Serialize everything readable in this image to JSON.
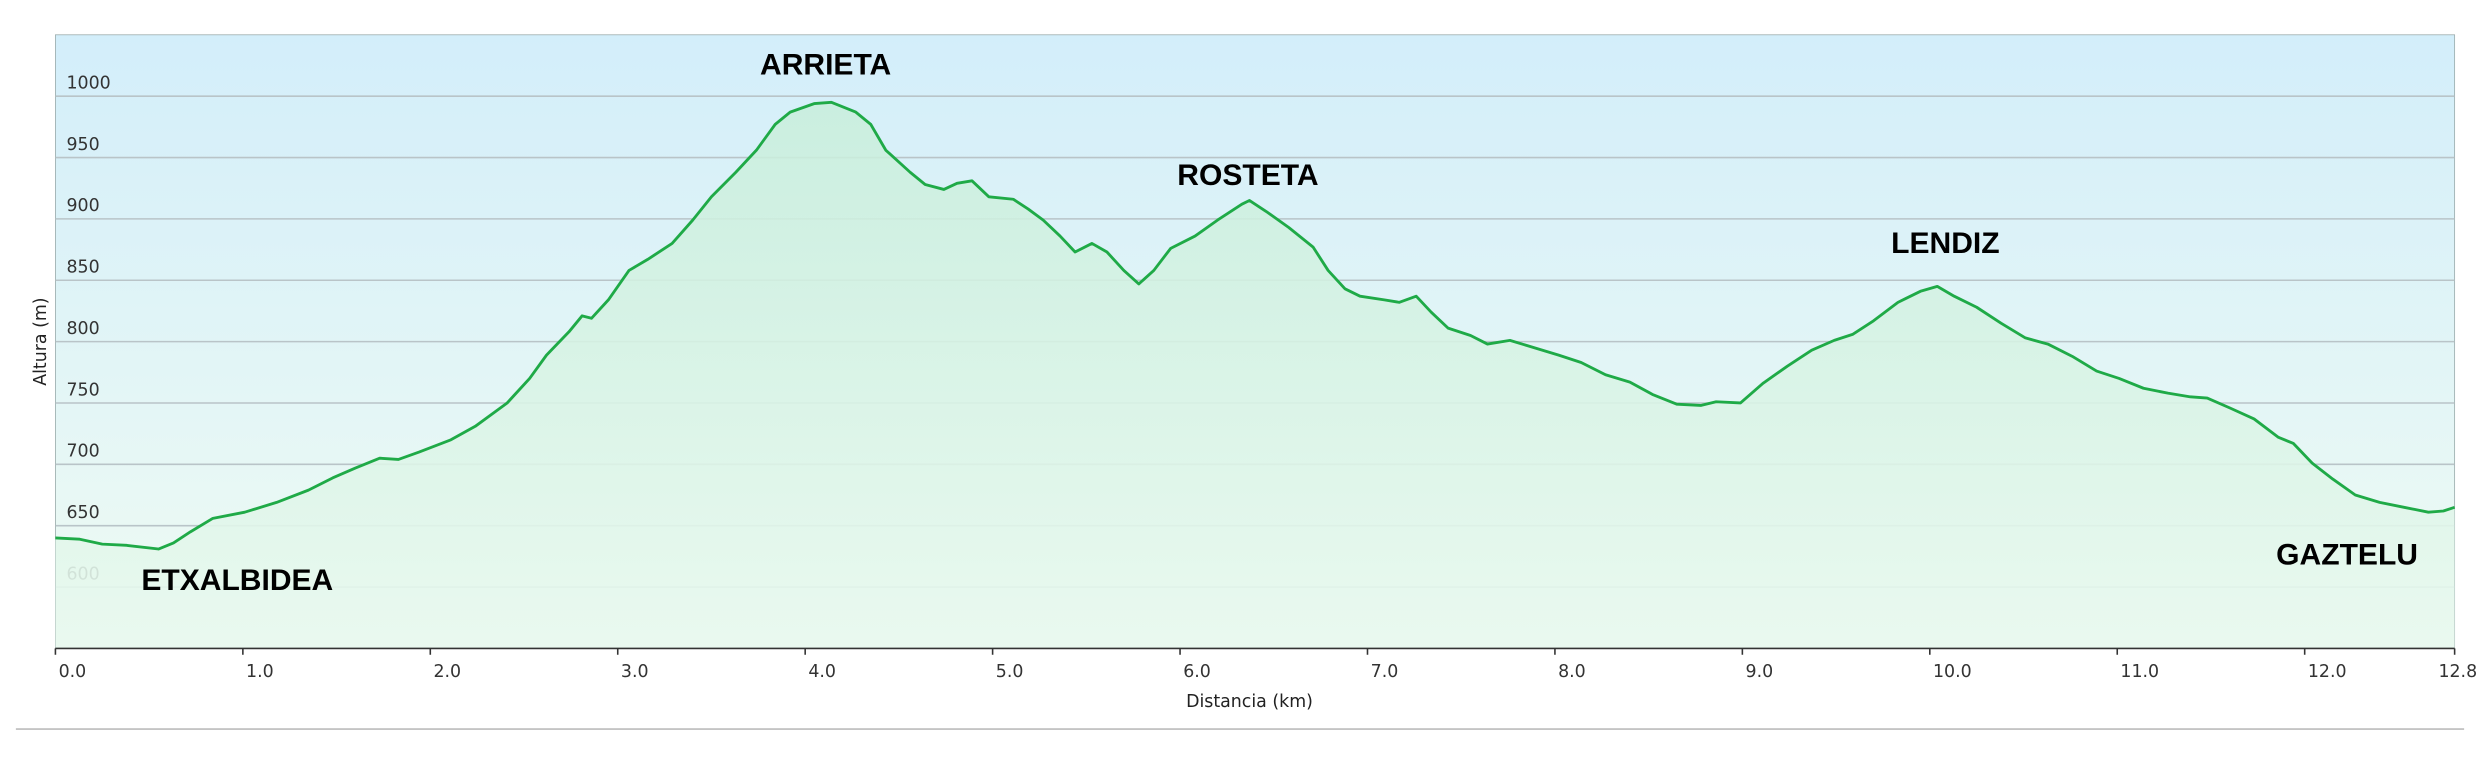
{
  "chart_data": {
    "type": "area",
    "x_label": "Distancia  (km)",
    "y_label": "Altura (m)",
    "annotations": [
      "ARRIETA",
      "ROSTETA",
      "LENDIZ",
      "ETXALBIDEA",
      "GAZTELU"
    ],
    "color": "#1faa47",
    "grid": true,
    "xlim": [
      0,
      12.8
    ],
    "ylim": [
      550,
      1050
    ],
    "xticks": [
      {
        "value": 0,
        "label": "0.0"
      },
      {
        "value": 1,
        "label": "1.0"
      },
      {
        "value": 2,
        "label": "2.0"
      },
      {
        "value": 3,
        "label": "3.0"
      },
      {
        "value": 4,
        "label": "4.0"
      },
      {
        "value": 5,
        "label": "5.0"
      },
      {
        "value": 6,
        "label": "6.0"
      },
      {
        "value": 7,
        "label": "7.0"
      },
      {
        "value": 8,
        "label": "8.0"
      },
      {
        "value": 9,
        "label": "9.0"
      },
      {
        "value": 10,
        "label": "10.0"
      },
      {
        "value": 11,
        "label": "11.0"
      },
      {
        "value": 12,
        "label": "12.0"
      },
      12.8
    ],
    "yticks": [
      600,
      650,
      700,
      750,
      800,
      850,
      900,
      950,
      1000
    ],
    "x": [
      0,
      0.13,
      0.25,
      0.38,
      0.55,
      0.63,
      0.72,
      0.84,
      1.01,
      1.18,
      1.35,
      1.48,
      1.6,
      1.73,
      1.83,
      1.94,
      2.11,
      2.24,
      2.41,
      2.53,
      2.62,
      2.74,
      2.81,
      2.86,
      2.95,
      3.06,
      3.16,
      3.29,
      3.4,
      3.5,
      3.63,
      3.74,
      3.84,
      3.92,
      4.05,
      4.14,
      4.27,
      4.35,
      4.43,
      4.56,
      4.64,
      4.74,
      4.81,
      4.89,
      4.98,
      5.11,
      5.19,
      5.27,
      5.36,
      5.44,
      5.53,
      5.61,
      5.7,
      5.78,
      5.86,
      5.95,
      6.08,
      6.2,
      6.33,
      6.37,
      6.46,
      6.58,
      6.71,
      6.79,
      6.88,
      6.96,
      7.09,
      7.17,
      7.26,
      7.34,
      7.43,
      7.55,
      7.64,
      7.76,
      7.89,
      8.02,
      8.14,
      8.27,
      8.4,
      8.52,
      8.65,
      8.78,
      8.86,
      8.99,
      9.11,
      9.24,
      9.37,
      9.49,
      9.59,
      9.7,
      9.83,
      9.95,
      10.04,
      10.13,
      10.25,
      10.38,
      10.51,
      10.63,
      10.76,
      10.89,
      11.01,
      11.14,
      11.27,
      11.39,
      11.48,
      11.6,
      11.73,
      11.86,
      11.94,
      12.04,
      12.15,
      12.27,
      12.4,
      12.53,
      12.66,
      12.74,
      12.8
    ],
    "values": [
      640,
      639,
      635,
      634,
      631,
      636,
      645,
      656,
      661,
      669,
      679,
      689,
      697,
      705,
      704,
      710,
      720,
      731,
      750,
      770,
      789,
      808,
      821,
      819,
      834,
      858,
      867,
      880,
      899,
      918,
      938,
      956,
      977,
      987,
      994,
      995,
      987,
      977,
      956,
      938,
      928,
      924,
      929,
      931,
      918,
      916,
      908,
      899,
      886,
      873,
      880,
      873,
      858,
      847,
      858,
      876,
      886,
      899,
      912,
      915,
      906,
      893,
      877,
      858,
      843,
      837,
      834,
      832,
      837,
      824,
      811,
      805,
      798,
      801,
      795,
      789,
      783,
      773,
      767,
      757,
      749,
      748,
      751,
      750,
      766,
      780,
      793,
      801,
      806,
      817,
      832,
      841,
      845,
      837,
      828,
      815,
      803,
      798,
      788,
      776,
      770,
      762,
      758,
      755,
      754,
      746,
      737,
      722,
      717,
      701,
      688,
      675,
      669,
      665,
      661,
      662,
      665
    ]
  }
}
